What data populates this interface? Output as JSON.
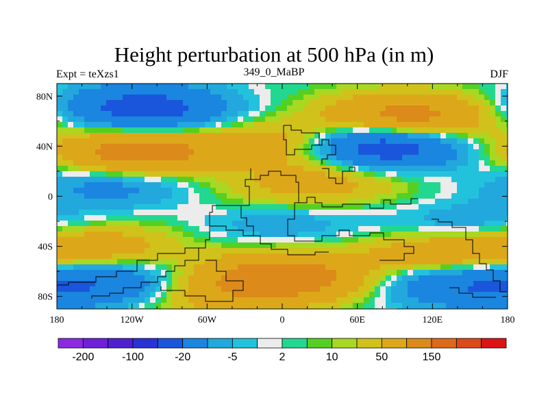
{
  "title": "Height perturbation at 500 hPa (in m)",
  "left_subtitle": "Expt = teXzs1",
  "center_subtitle": "349_0_MaBP",
  "right_subtitle": "DJF",
  "y_ticks": [
    {
      "lat": 80,
      "label": "80N"
    },
    {
      "lat": 40,
      "label": "40N"
    },
    {
      "lat": 0,
      "label": "0"
    },
    {
      "lat": -40,
      "label": "40S"
    },
    {
      "lat": -80,
      "label": "80S"
    }
  ],
  "x_ticks": [
    {
      "lon": -180,
      "label": "180"
    },
    {
      "lon": -120,
      "label": "120W"
    },
    {
      "lon": -60,
      "label": "60W"
    },
    {
      "lon": 0,
      "label": "0"
    },
    {
      "lon": 60,
      "label": "60E"
    },
    {
      "lon": 120,
      "label": "120E"
    },
    {
      "lon": 180,
      "label": "180"
    }
  ],
  "colorbar": {
    "colors": [
      "#8a2be2",
      "#7020d8",
      "#5020d0",
      "#2a32d6",
      "#1a56dc",
      "#1a86df",
      "#22a8dc",
      "#22c2dc",
      "#ececec",
      "#22d890",
      "#55d022",
      "#a8d822",
      "#d0c21a",
      "#dca81a",
      "#dc8a1a",
      "#dc6a1a",
      "#dc4a1a",
      "#dc1414"
    ],
    "labels": [
      {
        "boundary": 1,
        "text": "-200"
      },
      {
        "boundary": 3,
        "text": "-100"
      },
      {
        "boundary": 5,
        "text": "-20"
      },
      {
        "boundary": 7,
        "text": "-5"
      },
      {
        "boundary": 9,
        "text": "2"
      },
      {
        "boundary": 11,
        "text": "10"
      },
      {
        "boundary": 13,
        "text": "50"
      },
      {
        "boundary": 15,
        "text": "150"
      }
    ]
  },
  "field_centers": [
    {
      "lon": -110,
      "lat": 70,
      "value": -70
    },
    {
      "lon": 100,
      "lat": 63,
      "value": 70
    },
    {
      "lon": -115,
      "lat": 35,
      "value": 75
    },
    {
      "lon": 75,
      "lat": 40,
      "value": -90
    },
    {
      "lon": 10,
      "lat": 42,
      "value": 40
    },
    {
      "lon": -135,
      "lat": 10,
      "value": -30
    },
    {
      "lon": 40,
      "lat": 15,
      "value": 25
    },
    {
      "lon": 0,
      "lat": 0,
      "value": 15
    },
    {
      "lon": -150,
      "lat": -40,
      "value": 35
    },
    {
      "lon": 130,
      "lat": -45,
      "value": 45
    },
    {
      "lon": 0,
      "lat": -20,
      "value": -20
    },
    {
      "lon": 150,
      "lat": -25,
      "value": -25
    },
    {
      "lon": -140,
      "lat": -70,
      "value": -45
    },
    {
      "lon": 140,
      "lat": -70,
      "value": -45
    },
    {
      "lon": 0,
      "lat": -65,
      "value": 80
    },
    {
      "lon": -60,
      "lat": -80,
      "value": 25
    }
  ]
}
